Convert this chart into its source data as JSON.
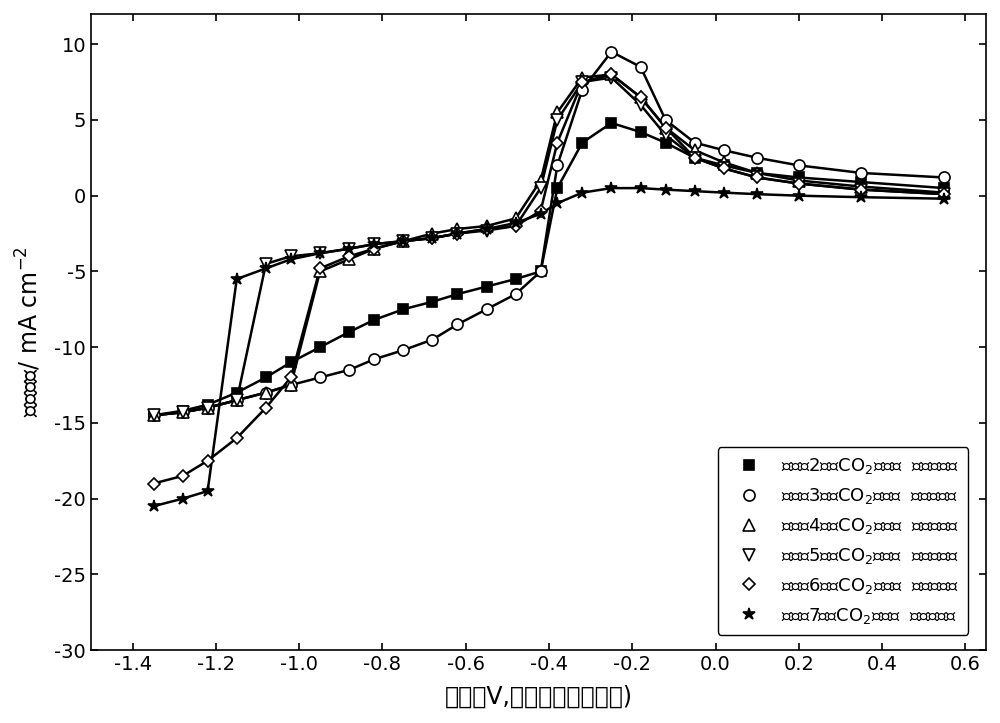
{
  "xlabel": "电位（V,相对于标准氢电极)",
  "ylabel": "电流密度/ mA cm$^{-2}$",
  "xlim": [
    -1.5,
    0.65
  ],
  "ylim": [
    -30,
    12
  ],
  "xticks": [
    -1.4,
    -1.2,
    -1.0,
    -0.8,
    -0.6,
    -0.4,
    -0.2,
    0.0,
    0.2,
    0.4,
    0.6
  ],
  "yticks": [
    -30,
    -25,
    -20,
    -15,
    -10,
    -5,
    0,
    5,
    10
  ],
  "background_color": "#ffffff",
  "line_color": "#000000",
  "fontsize_label": 17,
  "fontsize_tick": 14,
  "fontsize_legend": 13,
  "series": [
    {
      "label": "实施例2中的CO$_2$电化学  还原催化剂",
      "marker": "s",
      "mfc": "black",
      "ms": 7,
      "lw": 1.8,
      "x": [
        -1.35,
        -1.28,
        -1.22,
        -1.15,
        -1.08,
        -1.02,
        -0.95,
        -0.88,
        -0.82,
        -0.75,
        -0.68,
        -0.62,
        -0.55,
        -0.48,
        -0.42,
        -0.38,
        -0.32,
        -0.25,
        -0.18,
        -0.12,
        -0.05,
        0.02,
        0.1,
        0.2,
        0.35,
        0.55
      ],
      "y": [
        -14.5,
        -14.2,
        -13.8,
        -13.0,
        -12.0,
        -11.0,
        -10.0,
        -9.0,
        -8.2,
        -7.5,
        -7.0,
        -6.5,
        -6.0,
        -5.5,
        -5.0,
        0.5,
        3.5,
        4.8,
        4.2,
        3.5,
        2.5,
        2.0,
        1.5,
        1.2,
        0.9,
        0.5
      ]
    },
    {
      "label": "实施例3中的CO$_2$电化学  还原催化剂",
      "marker": "o",
      "mfc": "white",
      "ms": 8,
      "lw": 1.8,
      "x": [
        -1.35,
        -1.28,
        -1.22,
        -1.15,
        -1.08,
        -1.02,
        -0.95,
        -0.88,
        -0.82,
        -0.75,
        -0.68,
        -0.62,
        -0.55,
        -0.48,
        -0.42,
        -0.38,
        -0.32,
        -0.25,
        -0.18,
        -0.12,
        -0.05,
        0.02,
        0.1,
        0.2,
        0.35,
        0.55
      ],
      "y": [
        -14.5,
        -14.3,
        -14.0,
        -13.5,
        -13.0,
        -12.5,
        -12.0,
        -11.5,
        -10.8,
        -10.2,
        -9.5,
        -8.5,
        -7.5,
        -6.5,
        -5.0,
        2.0,
        7.0,
        9.5,
        8.5,
        5.0,
        3.5,
        3.0,
        2.5,
        2.0,
        1.5,
        1.2
      ]
    },
    {
      "label": "实施例4中的CO$_2$电化学  还原催化剂",
      "marker": "^",
      "mfc": "white",
      "ms": 8,
      "lw": 1.8,
      "x": [
        -1.35,
        -1.28,
        -1.22,
        -1.15,
        -1.08,
        -1.02,
        -0.95,
        -0.88,
        -0.82,
        -0.75,
        -0.68,
        -0.62,
        -0.55,
        -0.48,
        -0.42,
        -0.38,
        -0.32,
        -0.25,
        -0.18,
        -0.12,
        -0.05,
        0.02,
        0.1,
        0.2,
        0.35,
        0.55
      ],
      "y": [
        -14.5,
        -14.3,
        -14.0,
        -13.5,
        -13.0,
        -12.5,
        -5.0,
        -4.2,
        -3.5,
        -3.0,
        -2.5,
        -2.2,
        -2.0,
        -1.5,
        1.0,
        5.5,
        7.8,
        8.0,
        6.5,
        4.5,
        3.0,
        2.2,
        1.5,
        1.0,
        0.6,
        0.2
      ]
    },
    {
      "label": "实施例5中的CO$_2$电化学  还原催化剂",
      "marker": "v",
      "mfc": "white",
      "ms": 8,
      "lw": 1.8,
      "x": [
        -1.35,
        -1.28,
        -1.22,
        -1.15,
        -1.08,
        -1.02,
        -0.95,
        -0.88,
        -0.82,
        -0.75,
        -0.68,
        -0.62,
        -0.55,
        -0.48,
        -0.42,
        -0.38,
        -0.32,
        -0.25,
        -0.18,
        -0.12,
        -0.05,
        0.02,
        0.1,
        0.2,
        0.35,
        0.55
      ],
      "y": [
        -14.5,
        -14.3,
        -14.0,
        -13.5,
        -4.5,
        -4.0,
        -3.8,
        -3.5,
        -3.2,
        -3.0,
        -2.8,
        -2.5,
        -2.3,
        -2.0,
        0.5,
        5.0,
        7.5,
        7.8,
        6.0,
        4.0,
        2.5,
        1.8,
        1.2,
        0.8,
        0.4,
        0.1
      ]
    },
    {
      "label": "实施例6中的CO$_2$电化学  还原催化剂",
      "marker": "D",
      "mfc": "white",
      "ms": 6,
      "lw": 1.8,
      "x": [
        -1.35,
        -1.28,
        -1.22,
        -1.15,
        -1.08,
        -1.02,
        -0.95,
        -0.88,
        -0.82,
        -0.75,
        -0.68,
        -0.62,
        -0.55,
        -0.48,
        -0.42,
        -0.38,
        -0.32,
        -0.25,
        -0.18,
        -0.12,
        -0.05,
        0.02,
        0.1,
        0.2,
        0.35,
        0.55
      ],
      "y": [
        -19.0,
        -18.5,
        -17.5,
        -16.0,
        -14.0,
        -12.0,
        -4.8,
        -4.0,
        -3.5,
        -3.0,
        -2.8,
        -2.5,
        -2.2,
        -2.0,
        -1.0,
        3.5,
        7.5,
        8.0,
        6.5,
        4.5,
        2.5,
        1.8,
        1.2,
        0.8,
        0.4,
        0.1
      ]
    },
    {
      "label": "实施例7中的CO$_2$电化学  还原催化剂",
      "marker": "*",
      "mfc": "black",
      "ms": 9,
      "lw": 1.8,
      "x": [
        -1.35,
        -1.28,
        -1.22,
        -1.15,
        -1.08,
        -1.02,
        -0.95,
        -0.88,
        -0.82,
        -0.75,
        -0.68,
        -0.62,
        -0.55,
        -0.48,
        -0.42,
        -0.38,
        -0.32,
        -0.25,
        -0.18,
        -0.12,
        -0.05,
        0.02,
        0.1,
        0.2,
        0.35,
        0.55
      ],
      "y": [
        -20.5,
        -20.0,
        -19.5,
        -5.5,
        -4.8,
        -4.2,
        -3.8,
        -3.5,
        -3.2,
        -3.0,
        -2.8,
        -2.5,
        -2.2,
        -1.8,
        -1.2,
        -0.5,
        0.2,
        0.5,
        0.5,
        0.4,
        0.3,
        0.2,
        0.1,
        0.0,
        -0.1,
        -0.2
      ]
    }
  ]
}
